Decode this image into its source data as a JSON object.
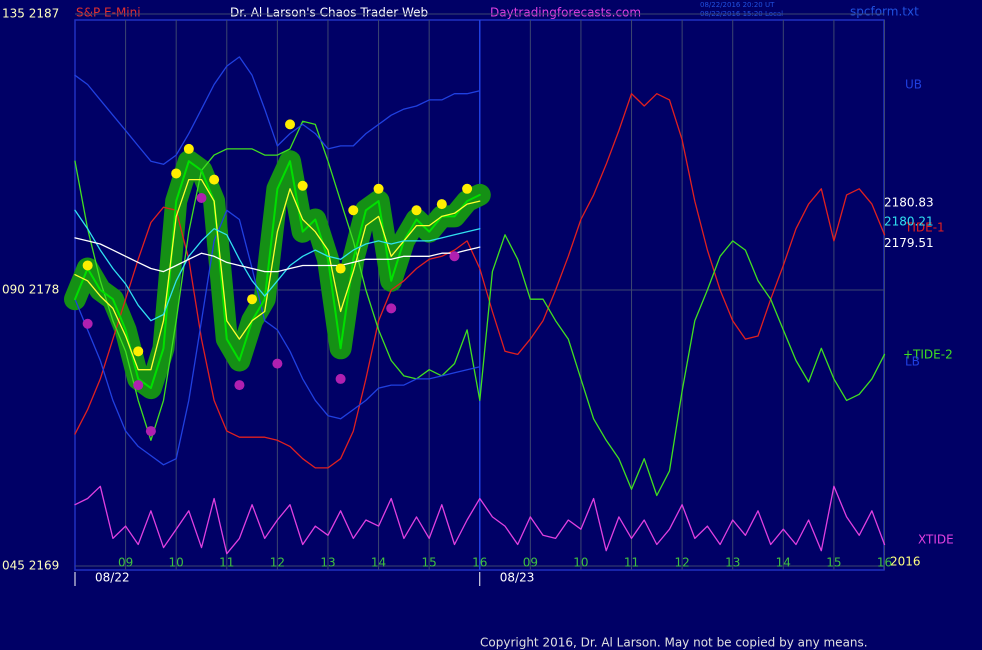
{
  "header": {
    "symbol": "S&P E-Mini",
    "title": "Dr. Al Larson's Chaos Trader Web",
    "site": "Daytradingforecasts.com",
    "time_ut": "08/22/2016 20:20 UT",
    "time_local": "08/22/2016 15:20 Local",
    "file": "spcform.txt",
    "year": "2016",
    "copyright": "Copyright 2016, Dr. Al Larson. May not be copied by any means."
  },
  "chart_data": {
    "type": "line",
    "grid": true,
    "xlim": [
      8,
      24
    ],
    "ylim": [
      2169,
      2187
    ],
    "yticks": [
      {
        "value": 2187,
        "label": "135 2187"
      },
      {
        "value": 2178,
        "label": "090 2178"
      },
      {
        "value": 2169,
        "label": "045 2169"
      }
    ],
    "xticks": [
      {
        "value": 9,
        "label": "09"
      },
      10,
      11,
      12,
      13,
      14,
      15,
      16,
      {
        "value": 17,
        "label": "09"
      },
      {
        "value": 18,
        "label": "10"
      },
      {
        "value": 19,
        "label": "11"
      },
      {
        "value": 20,
        "label": "12"
      },
      {
        "value": 21,
        "label": "13"
      },
      {
        "value": 22,
        "label": "14"
      },
      {
        "value": 23,
        "label": "15"
      },
      {
        "value": 24,
        "label": "16"
      }
    ],
    "date_ticks": [
      {
        "value": 8,
        "label": "08/22"
      },
      {
        "value": 16,
        "label": "08/23"
      }
    ],
    "x": [
      8,
      8.25,
      8.5,
      8.75,
      9,
      9.25,
      9.5,
      9.75,
      10,
      10.25,
      10.5,
      10.75,
      11,
      11.25,
      11.5,
      11.75,
      12,
      12.25,
      12.5,
      12.75,
      13,
      13.25,
      13.5,
      13.75,
      14,
      14.25,
      14.5,
      14.75,
      15,
      15.25,
      15.5,
      15.75,
      16,
      16.25,
      16.5,
      16.75,
      17,
      17.25,
      17.5,
      17.75,
      18,
      18.25,
      18.5,
      18.75,
      19,
      19.25,
      19.5,
      19.75,
      20,
      20.25,
      20.5,
      20.75,
      21,
      21.25,
      21.5,
      21.75,
      22,
      22.25,
      22.5,
      22.75,
      23,
      23.25,
      23.5,
      23.75,
      24
    ],
    "series": [
      {
        "name": "TIDE-1",
        "color": "#e02020",
        "values": [
          2173.3,
          2174.1,
          2175.1,
          2176.4,
          2177.7,
          2179.0,
          2180.2,
          2180.7,
          2180.6,
          2179.0,
          2176.4,
          2174.4,
          2173.4,
          2173.2,
          2173.2,
          2173.2,
          2173.1,
          2172.9,
          2172.5,
          2172.2,
          2172.2,
          2172.5,
          2173.4,
          2175.1,
          2177.0,
          2178.0,
          2178.3,
          2178.7,
          2179.0,
          2179.1,
          2179.3,
          2179.6,
          2178.7,
          2177.3,
          2176.0,
          2175.9,
          2176.4,
          2177.0,
          2178.0,
          2179.1,
          2180.3,
          2181.1,
          2182.1,
          2183.2,
          2184.4,
          2184.0,
          2184.4,
          2184.2,
          2182.9,
          2180.9,
          2179.3,
          2178.0,
          2177.0,
          2176.4,
          2176.5,
          2177.7,
          2178.8,
          2180.0,
          2180.8,
          2181.3,
          2179.6,
          2181.1,
          2181.3,
          2180.8,
          2179.8
        ]
      },
      {
        "name": "+TIDE-2",
        "color": "#40e020",
        "values": [
          2182.2,
          2180.0,
          2178.3,
          2177.0,
          2176.0,
          2174.4,
          2173.1,
          2174.4,
          2177.0,
          2179.9,
          2181.9,
          2182.4,
          2182.6,
          2182.6,
          2182.6,
          2182.4,
          2182.4,
          2182.6,
          2183.5,
          2183.4,
          2182.2,
          2180.9,
          2179.6,
          2178.0,
          2176.7,
          2175.7,
          2175.2,
          2175.1,
          2175.4,
          2175.2,
          2175.6,
          2176.7,
          2174.4,
          2178.6,
          2179.8,
          2179.0,
          2177.7,
          2177.7,
          2177.0,
          2176.4,
          2175.1,
          2173.8,
          2173.1,
          2172.5,
          2171.5,
          2172.5,
          2171.3,
          2172.1,
          2174.7,
          2177.0,
          2178.0,
          2179.1,
          2179.6,
          2179.3,
          2178.3,
          2177.7,
          2176.7,
          2175.7,
          2175.0,
          2176.1,
          2175.1,
          2174.4,
          2174.6,
          2175.1,
          2175.9
        ]
      },
      {
        "name": "UB",
        "color": "#2040e0",
        "values": [
          2185.0,
          2184.7,
          2184.2,
          2183.7,
          2183.2,
          2182.7,
          2182.2,
          2182.1,
          2182.4,
          2183.1,
          2183.9,
          2184.7,
          2185.3,
          2185.6,
          2185.0,
          2183.9,
          2182.7,
          2183.1,
          2183.4,
          2183.1,
          2182.6,
          2182.7,
          2182.7,
          2183.1,
          2183.4,
          2183.7,
          2183.9,
          2184.0,
          2184.2,
          2184.2,
          2184.4,
          2184.4,
          2184.5,
          null,
          null,
          null,
          null,
          null,
          null,
          null,
          null,
          null,
          null,
          null,
          null,
          null,
          null,
          null,
          null,
          null,
          null,
          null,
          null,
          null,
          null,
          null,
          null,
          null,
          null,
          null,
          null,
          null,
          null,
          null,
          null
        ]
      },
      {
        "name": "LB",
        "color": "#2040e0",
        "values": [
          2177.7,
          2176.7,
          2175.7,
          2174.4,
          2173.4,
          2172.9,
          2172.6,
          2172.3,
          2172.5,
          2174.4,
          2177.0,
          2179.6,
          2180.6,
          2180.3,
          2178.7,
          2177.0,
          2176.7,
          2176.0,
          2175.1,
          2174.4,
          2173.9,
          2173.8,
          2174.1,
          2174.4,
          2174.8,
          2174.9,
          2174.9,
          2175.1,
          2175.1,
          2175.2,
          2175.3,
          2175.4,
          2175.5,
          null,
          null,
          null,
          null,
          null,
          null,
          null,
          null,
          null,
          null,
          null,
          null,
          null,
          null,
          null,
          null,
          null,
          null,
          null,
          null,
          null,
          null,
          null,
          null,
          null,
          null,
          null,
          null,
          null,
          null,
          null,
          null
        ]
      },
      {
        "name": "XTIDE",
        "color": "#e040e0",
        "values": [
          2171.0,
          2171.2,
          2171.6,
          2169.9,
          2170.3,
          2169.7,
          2170.8,
          2169.6,
          2170.2,
          2170.8,
          2169.6,
          2171.2,
          2169.4,
          2169.9,
          2171.0,
          2169.9,
          2170.5,
          2171.0,
          2169.7,
          2170.3,
          2170.0,
          2170.8,
          2169.9,
          2170.5,
          2170.3,
          2171.2,
          2169.9,
          2170.6,
          2169.9,
          2171.0,
          2169.7,
          2170.5,
          2171.2,
          2170.6,
          2170.3,
          2169.7,
          2170.6,
          2170.0,
          2169.9,
          2170.5,
          2170.2,
          2171.2,
          2169.5,
          2170.6,
          2169.9,
          2170.5,
          2169.7,
          2170.2,
          2171.0,
          2169.9,
          2170.3,
          2169.7,
          2170.5,
          2170.0,
          2170.8,
          2169.7,
          2170.2,
          2169.7,
          2170.5,
          2169.5,
          2171.6,
          2170.6,
          2170.0,
          2170.8,
          2169.7
        ]
      },
      {
        "color": "#00e000",
        "halo": "#159015",
        "values": [
          2177.7,
          2178.7,
          2178.0,
          2177.7,
          2176.7,
          2175.1,
          2174.8,
          2176.1,
          2180.9,
          2182.2,
          2181.9,
          2180.9,
          2176.4,
          2175.7,
          2177.0,
          2177.7,
          2181.3,
          2182.2,
          2179.9,
          2180.3,
          2179.0,
          2176.1,
          2179.0,
          2180.6,
          2180.9,
          2178.3,
          2179.6,
          2180.3,
          2179.9,
          2180.4,
          2180.4,
          2180.9,
          2181.1,
          null,
          null,
          null,
          null,
          null,
          null,
          null,
          null,
          null,
          null,
          null,
          null,
          null,
          null,
          null,
          null,
          null,
          null,
          null,
          null,
          null,
          null,
          null,
          null,
          null,
          null,
          null,
          null,
          null,
          null,
          null,
          null
        ]
      },
      {
        "color": "#ffff30",
        "values": [
          2178.5,
          2178.3,
          2177.8,
          2177.4,
          2176.5,
          2175.4,
          2175.4,
          2177.0,
          2180.4,
          2181.6,
          2181.6,
          2180.9,
          2177.0,
          2176.4,
          2177.0,
          2177.3,
          2179.9,
          2181.3,
          2180.3,
          2179.9,
          2179.3,
          2177.3,
          2178.6,
          2180.1,
          2180.4,
          2179.1,
          2179.6,
          2180.1,
          2180.1,
          2180.4,
          2180.5,
          2180.8,
          2180.9,
          null,
          null,
          null,
          null,
          null,
          null,
          null,
          null,
          null,
          null,
          null,
          null,
          null,
          null,
          null,
          null,
          null,
          null,
          null,
          null,
          null,
          null,
          null,
          null,
          null,
          null,
          null,
          null,
          null,
          null,
          null,
          null
        ]
      },
      {
        "color": "#30e0f0",
        "values": [
          2180.6,
          2180.0,
          2179.3,
          2178.7,
          2178.2,
          2177.5,
          2177.0,
          2177.2,
          2178.3,
          2179.1,
          2179.6,
          2180.0,
          2179.8,
          2179.0,
          2178.3,
          2177.8,
          2178.3,
          2178.8,
          2179.1,
          2179.3,
          2179.1,
          2179.0,
          2179.3,
          2179.5,
          2179.6,
          2179.5,
          2179.6,
          2179.6,
          2179.6,
          2179.7,
          2179.8,
          2179.9,
          2180.0,
          null,
          null,
          null,
          null,
          null,
          null,
          null,
          null,
          null,
          null,
          null,
          null,
          null,
          null,
          null,
          null,
          null,
          null,
          null,
          null,
          null,
          null,
          null,
          null,
          null,
          null,
          null,
          null,
          null,
          null,
          null,
          null
        ]
      },
      {
        "color": "#ffffff",
        "values": [
          2179.7,
          2179.6,
          2179.5,
          2179.3,
          2179.1,
          2178.9,
          2178.7,
          2178.6,
          2178.8,
          2179.0,
          2179.2,
          2179.1,
          2178.9,
          2178.8,
          2178.7,
          2178.6,
          2178.6,
          2178.7,
          2178.8,
          2178.8,
          2178.8,
          2178.8,
          2178.9,
          2179.0,
          2179.0,
          2179.0,
          2179.1,
          2179.1,
          2179.1,
          2179.2,
          2179.2,
          2179.3,
          2179.4,
          null,
          null,
          null,
          null,
          null,
          null,
          null,
          null,
          null,
          null,
          null,
          null,
          null,
          null,
          null,
          null,
          null,
          null,
          null,
          null,
          null,
          null,
          null,
          null,
          null,
          null,
          null,
          null,
          null,
          null,
          null,
          null
        ]
      }
    ],
    "points": [
      {
        "color": "#ffee00",
        "x": [
          8.25,
          9.25,
          10,
          10.25,
          10.75,
          11.5,
          12.25,
          12.5,
          13.25,
          13.5,
          14,
          14.75,
          15.25,
          15.75
        ],
        "values": [
          2178.8,
          2176.0,
          2181.8,
          2182.6,
          2181.6,
          2177.7,
          2183.4,
          2181.4,
          2178.7,
          2180.6,
          2181.3,
          2180.6,
          2180.8,
          2181.3
        ]
      },
      {
        "color": "#b020b0",
        "x": [
          8.25,
          9.25,
          9.5,
          10.5,
          11.25,
          12,
          13.25,
          14.25,
          15.5
        ],
        "values": [
          2176.9,
          2174.9,
          2173.4,
          2181.0,
          2174.9,
          2175.6,
          2175.1,
          2177.4,
          2179.1
        ]
      }
    ],
    "last_values": [
      {
        "value": 2180.83,
        "color": "#ffffff"
      },
      {
        "value": 2180.21,
        "color": "#30e0f0"
      },
      {
        "value": 2179.51,
        "color": "#ffffff"
      }
    ]
  }
}
